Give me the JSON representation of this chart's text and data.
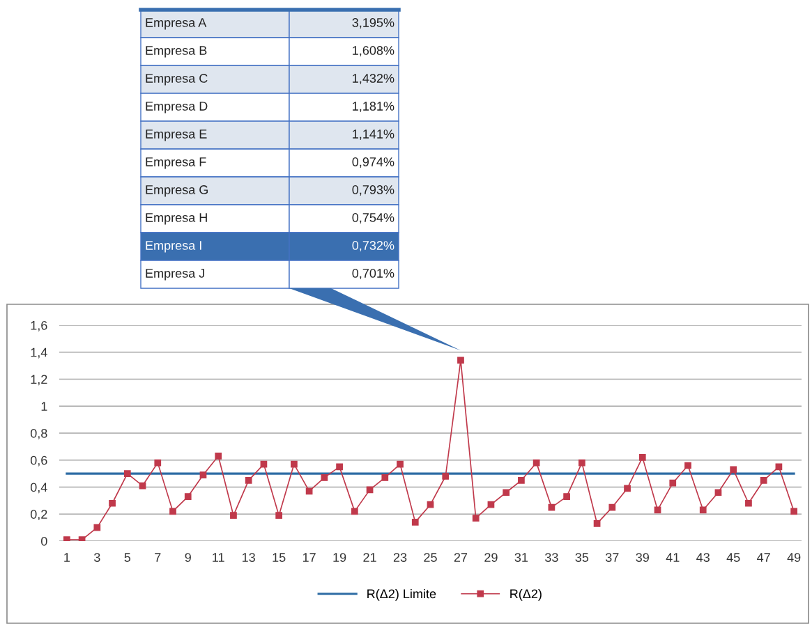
{
  "chart_data": {
    "type": "line",
    "categories": [
      "1",
      null,
      "3",
      null,
      "5",
      null,
      "7",
      null,
      "9",
      null,
      "11",
      null,
      "13",
      null,
      "15",
      null,
      "17",
      null,
      "19",
      null,
      "21",
      null,
      "23",
      null,
      "25",
      null,
      "27",
      null,
      "29",
      null,
      "31",
      null,
      "33",
      null,
      "35",
      null,
      "37",
      null,
      "39",
      null,
      "41",
      null,
      "43",
      null,
      "45",
      null,
      "47",
      null,
      "49"
    ],
    "series": [
      {
        "name": "R(Δ2) Limite",
        "color": "#2e6ca4",
        "marker": "none",
        "values": [
          0.5,
          0.5,
          0.5,
          0.5,
          0.5,
          0.5,
          0.5,
          0.5,
          0.5,
          0.5,
          0.5,
          0.5,
          0.5,
          0.5,
          0.5,
          0.5,
          0.5,
          0.5,
          0.5,
          0.5,
          0.5,
          0.5,
          0.5,
          0.5,
          0.5,
          0.5,
          0.5,
          0.5,
          0.5,
          0.5,
          0.5,
          0.5,
          0.5,
          0.5,
          0.5,
          0.5,
          0.5,
          0.5,
          0.5,
          0.5,
          0.5,
          0.5,
          0.5,
          0.5,
          0.5,
          0.5,
          0.5,
          0.5,
          0.5
        ]
      },
      {
        "name": "R(Δ2)",
        "color": "#c0394b",
        "marker": "square",
        "values": [
          0.01,
          0.01,
          0.1,
          0.28,
          0.5,
          0.41,
          0.58,
          0.22,
          0.33,
          0.49,
          0.63,
          0.19,
          0.45,
          0.57,
          0.19,
          0.57,
          0.37,
          0.47,
          0.55,
          0.22,
          0.38,
          0.47,
          0.57,
          0.14,
          0.27,
          0.48,
          1.34,
          0.17,
          0.27,
          0.36,
          0.45,
          0.58,
          0.25,
          0.33,
          0.58,
          0.13,
          0.25,
          0.39,
          0.62,
          0.23,
          0.43,
          0.56,
          0.23,
          0.36,
          0.53,
          0.28,
          0.45,
          0.55,
          0.22
        ]
      }
    ],
    "ylim": [
      0,
      1.6
    ],
    "yticks": [
      0,
      {
        "value": 0.2,
        "label": "0,2"
      },
      {
        "value": 0.4,
        "label": "0,4"
      },
      {
        "value": 0.6,
        "label": "0,6"
      },
      {
        "value": 0.8,
        "label": "0,8"
      },
      1,
      {
        "value": 1.2,
        "label": "1,2"
      },
      {
        "value": 1.4,
        "label": "1,4"
      },
      {
        "value": 1.6,
        "label": "1,6"
      }
    ],
    "grid": "y",
    "legend": "bottom",
    "annotations": [
      "Empresa A",
      "3,195%",
      "Empresa B",
      "1,608%",
      "Empresa C",
      "1,432%",
      "Empresa D",
      "1,181%",
      "Empresa E",
      "1,141%",
      "Empresa F",
      "0,974%",
      "Empresa G",
      "0,793%",
      "Empresa H",
      "0,754%",
      "Empresa I",
      "0,732%",
      "Empresa J",
      "0,701%"
    ]
  }
}
